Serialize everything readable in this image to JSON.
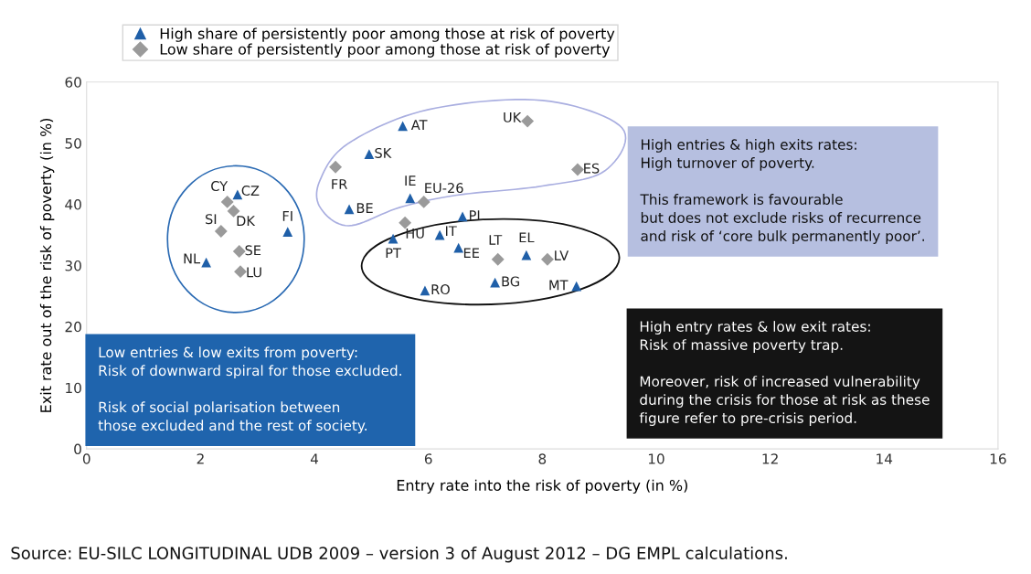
{
  "chart_data": {
    "type": "scatter",
    "xlabel": "Entry rate into the risk of poverty (in %)",
    "ylabel": "Exit rate out of the risk of poverty (in %)",
    "xlim": [
      0,
      16
    ],
    "xticks": [
      0,
      2,
      4,
      6,
      8,
      10,
      12,
      14,
      16
    ],
    "ylim": [
      0,
      60
    ],
    "yticks": [
      0,
      10,
      20,
      30,
      40,
      50,
      60
    ],
    "grid": false,
    "legend": "top left",
    "series": [
      {
        "name": "High share of persistently poor among those at risk of poverty",
        "color": "#1f5fa8",
        "marker": "triangle",
        "x": [
          2.65,
          3.53,
          2.1,
          5.55,
          4.96,
          4.61,
          5.68,
          6.6,
          5.38,
          6.2,
          6.53,
          7.72,
          5.94,
          7.17,
          8.6
        ],
        "values": [
          41.6,
          35.5,
          30.5,
          52.8,
          48.2,
          39.2,
          41.0,
          38.0,
          34.4,
          35.0,
          32.9,
          31.7,
          25.9,
          27.2,
          26.6
        ]
      },
      {
        "name": "Low share of persistently poor among those at risk of poverty",
        "color": "#9a9a9a",
        "marker": "diamond",
        "x": [
          2.47,
          2.58,
          2.36,
          2.68,
          2.7,
          4.37,
          5.92,
          5.59,
          7.74,
          8.62,
          7.22,
          8.09
        ],
        "values": [
          40.4,
          38.9,
          35.6,
          32.3,
          29.0,
          46.1,
          40.4,
          37.0,
          53.6,
          45.7,
          31.0,
          31.0
        ]
      }
    ],
    "annotations": [
      {
        "text": "CZ",
        "x": 2.65,
        "y": 41.6
      },
      {
        "text": "FI",
        "x": 3.53,
        "y": 35.5
      },
      {
        "text": "NL",
        "x": 2.1,
        "y": 30.5
      },
      {
        "text": "AT",
        "x": 5.55,
        "y": 52.8
      },
      {
        "text": "SK",
        "x": 4.96,
        "y": 48.2
      },
      {
        "text": "BE",
        "x": 4.61,
        "y": 39.2
      },
      {
        "text": "IE",
        "x": 5.68,
        "y": 41.0
      },
      {
        "text": "PL",
        "x": 6.6,
        "y": 38.0
      },
      {
        "text": "PT",
        "x": 5.38,
        "y": 34.4
      },
      {
        "text": "IT",
        "x": 6.2,
        "y": 35.0
      },
      {
        "text": "EE",
        "x": 6.53,
        "y": 32.9
      },
      {
        "text": "EL",
        "x": 7.72,
        "y": 31.7
      },
      {
        "text": "RO",
        "x": 5.94,
        "y": 25.9
      },
      {
        "text": "BG",
        "x": 7.17,
        "y": 27.2
      },
      {
        "text": "MT",
        "x": 8.6,
        "y": 26.6
      },
      {
        "text": "CY",
        "x": 2.47,
        "y": 40.4
      },
      {
        "text": "DK",
        "x": 2.58,
        "y": 38.9
      },
      {
        "text": "SI",
        "x": 2.36,
        "y": 35.6
      },
      {
        "text": "SE",
        "x": 2.68,
        "y": 32.3
      },
      {
        "text": "LU",
        "x": 2.7,
        "y": 29.0
      },
      {
        "text": "FR",
        "x": 4.37,
        "y": 46.1
      },
      {
        "text": "EU-26",
        "x": 5.92,
        "y": 40.4
      },
      {
        "text": "HU",
        "x": 5.59,
        "y": 37.0
      },
      {
        "text": "UK",
        "x": 7.74,
        "y": 53.6
      },
      {
        "text": "ES",
        "x": 8.62,
        "y": 45.7
      },
      {
        "text": "LT",
        "x": 7.22,
        "y": 31.0
      },
      {
        "text": "LV",
        "x": 8.09,
        "y": 31.0
      },
      "Low entries & low exits from poverty:\nRisk of downward spiral for those excluded.\n\nRisk of social polarisation between\nthose excluded and the rest of society.",
      "High entries & high exits rates:\nHigh turnover of poverty.\n\nThis framework is favourable\nbut does not exclude risks of recurrence\nand risk of ‘core bulk permanently poor’.",
      "High entry rates & low exit rates:\nRisk of massive poverty trap.\n\nMoreover, risk of increased vulnerability\nduring the crisis for those at risk as these\nfigure refer to pre-crisis period.",
      "Source: EU-SILC LONGITUDINAL UDB 2009 – version 3 of August 2012 – DG EMPL calculations."
    ]
  }
}
